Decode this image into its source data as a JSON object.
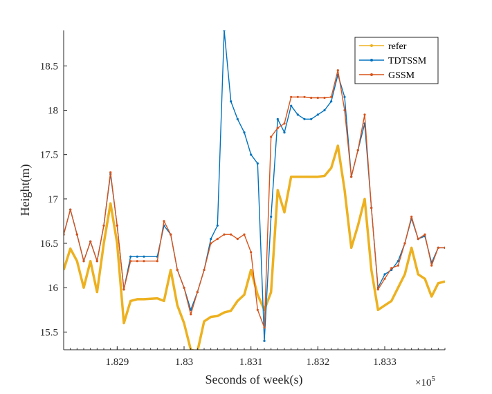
{
  "chart_data": {
    "type": "line",
    "xlabel": "Seconds of week(s)",
    "ylabel": "Height(m)",
    "x_exponent_label": "×10",
    "x_exponent_power": "5",
    "x_scale": 100000,
    "xlim": [
      1.8282,
      1.8339
    ],
    "ylim": [
      15.3,
      18.9
    ],
    "x_ticks": [
      1.829,
      1.83,
      1.831,
      1.832,
      1.833
    ],
    "x_tick_labels": [
      "1.829",
      "1.83",
      "1.831",
      "1.832",
      "1.833"
    ],
    "y_ticks": [
      15.5,
      16,
      16.5,
      17,
      17.5,
      18,
      18.5
    ],
    "y_tick_labels": [
      "15.5",
      "16",
      "16.5",
      "17",
      "17.5",
      "18",
      "18.5"
    ],
    "grid": false,
    "legend_position": "top-right",
    "series": [
      {
        "name": "refer",
        "color": "#EDB120",
        "x": [
          1.8282,
          1.8283,
          1.8284,
          1.8285,
          1.8286,
          1.8287,
          1.8288,
          1.8289,
          1.829,
          1.8291,
          1.8292,
          1.8293,
          1.8294,
          1.8296,
          1.8297,
          1.8298,
          1.8299,
          1.83,
          1.8301,
          1.8302,
          1.8303,
          1.8304,
          1.8305,
          1.8306,
          1.8307,
          1.8308,
          1.8309,
          1.831,
          1.8311,
          1.8312,
          1.8313,
          1.8314,
          1.8315,
          1.8316,
          1.8317,
          1.8318,
          1.8319,
          1.832,
          1.8321,
          1.8322,
          1.8323,
          1.8324,
          1.8325,
          1.8326,
          1.8327,
          1.8328,
          1.8329,
          1.833,
          1.8331,
          1.8332,
          1.8333,
          1.8334,
          1.8335,
          1.8336,
          1.8337,
          1.8338,
          1.8339
        ],
        "values": [
          16.2,
          16.44,
          16.3,
          16.0,
          16.3,
          15.95,
          16.5,
          16.95,
          16.5,
          15.6,
          15.85,
          15.87,
          15.87,
          15.88,
          15.85,
          16.2,
          15.8,
          15.6,
          15.3,
          15.28,
          15.62,
          15.67,
          15.68,
          15.72,
          15.74,
          15.85,
          15.92,
          16.2,
          15.92,
          15.75,
          15.95,
          17.1,
          16.85,
          17.25,
          17.25,
          17.25,
          17.25,
          17.25,
          17.26,
          17.35,
          17.6,
          17.1,
          16.45,
          16.7,
          17.0,
          16.2,
          15.75,
          15.8,
          15.85,
          16.0,
          16.15,
          16.45,
          16.15,
          16.1,
          15.9,
          16.05,
          16.07
        ]
      },
      {
        "name": "TDTSSM",
        "color": "#0072BD",
        "x": [
          1.8282,
          1.8283,
          1.8284,
          1.8285,
          1.8286,
          1.8287,
          1.8288,
          1.8289,
          1.829,
          1.8291,
          1.8292,
          1.8293,
          1.8294,
          1.8296,
          1.8297,
          1.8298,
          1.8299,
          1.83,
          1.8301,
          1.8302,
          1.8303,
          1.8304,
          1.8305,
          1.8306,
          1.8307,
          1.8308,
          1.8309,
          1.831,
          1.8311,
          1.8312,
          1.8313,
          1.8314,
          1.8315,
          1.8316,
          1.8317,
          1.8318,
          1.8319,
          1.832,
          1.8321,
          1.8322,
          1.8323,
          1.8324,
          1.8325,
          1.8326,
          1.8327,
          1.8328,
          1.8329,
          1.833,
          1.8331,
          1.8332,
          1.8333,
          1.8334,
          1.8335,
          1.8336,
          1.8337,
          1.8338,
          1.8339
        ],
        "values": [
          16.6,
          16.88,
          16.6,
          16.3,
          16.52,
          16.3,
          16.7,
          17.28,
          16.7,
          15.98,
          16.35,
          16.35,
          16.35,
          16.35,
          16.7,
          16.6,
          16.2,
          16.0,
          15.75,
          15.95,
          16.2,
          16.55,
          16.7,
          18.9,
          18.1,
          17.9,
          17.75,
          17.5,
          17.4,
          15.4,
          16.8,
          17.9,
          17.75,
          18.05,
          17.95,
          17.9,
          17.9,
          17.95,
          18.0,
          18.1,
          18.4,
          18.15,
          17.25,
          17.55,
          17.85,
          16.9,
          16.0,
          16.15,
          16.2,
          16.3,
          16.5,
          16.78,
          16.55,
          16.58,
          16.28,
          16.45,
          16.45
        ]
      },
      {
        "name": "GSSM",
        "color": "#D95319",
        "x": [
          1.8282,
          1.8283,
          1.8284,
          1.8285,
          1.8286,
          1.8287,
          1.8288,
          1.8289,
          1.829,
          1.8291,
          1.8292,
          1.8293,
          1.8294,
          1.8296,
          1.8297,
          1.8298,
          1.8299,
          1.83,
          1.8301,
          1.8302,
          1.8303,
          1.8304,
          1.8305,
          1.8306,
          1.8307,
          1.8308,
          1.8309,
          1.831,
          1.8311,
          1.8312,
          1.8313,
          1.8314,
          1.8315,
          1.8316,
          1.8317,
          1.8318,
          1.8319,
          1.832,
          1.8321,
          1.8322,
          1.8323,
          1.8324,
          1.8325,
          1.8326,
          1.8327,
          1.8328,
          1.8329,
          1.833,
          1.8331,
          1.8332,
          1.8333,
          1.8334,
          1.8335,
          1.8336,
          1.8337,
          1.8338,
          1.8339
        ],
        "values": [
          16.6,
          16.88,
          16.6,
          16.3,
          16.52,
          16.3,
          16.7,
          17.3,
          16.7,
          15.98,
          16.3,
          16.3,
          16.3,
          16.3,
          16.75,
          16.6,
          16.2,
          16.0,
          15.7,
          15.95,
          16.2,
          16.5,
          16.55,
          16.6,
          16.6,
          16.55,
          16.6,
          16.4,
          15.75,
          15.55,
          17.7,
          17.8,
          17.85,
          18.15,
          18.15,
          18.15,
          18.14,
          18.14,
          18.14,
          18.15,
          18.45,
          18.0,
          17.25,
          17.55,
          17.95,
          16.9,
          15.98,
          16.1,
          16.22,
          16.25,
          16.5,
          16.8,
          16.55,
          16.6,
          16.25,
          16.45,
          16.45
        ]
      }
    ]
  }
}
